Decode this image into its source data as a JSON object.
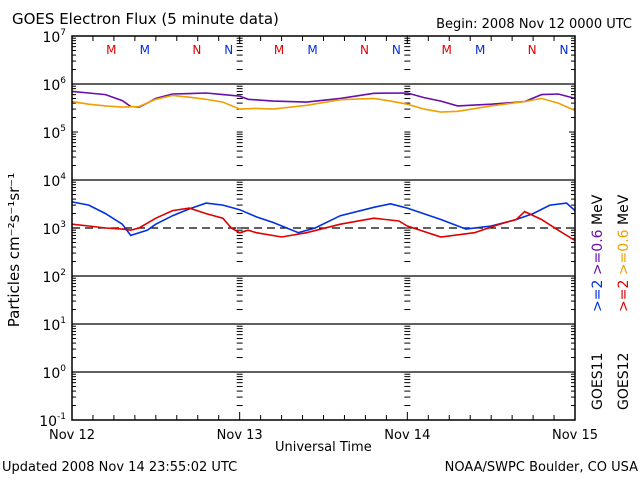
{
  "header": {
    "title": "GOES Electron Flux (5 minute data)",
    "begin": "Begin: 2008 Nov 12 0000 UTC"
  },
  "footer": {
    "updated": "Updated 2008 Nov 14 23:55:02 UTC",
    "credit": "NOAA/SWPC Boulder, CO USA"
  },
  "chart_data": {
    "type": "line",
    "title": "GOES Electron Flux (5 minute data)",
    "xlabel": "Universal Time",
    "ylabel": "Particles cm⁻²s⁻¹sr⁻¹",
    "yscale": "log",
    "ylim": [
      0.1,
      10000000
    ],
    "xlim_days": [
      0,
      3
    ],
    "x_ticks": [
      "Nov 12",
      "Nov 13",
      "Nov 14",
      "Nov 15"
    ],
    "y_ticks": [
      {
        "base": "10",
        "exp": "7"
      },
      {
        "base": "10",
        "exp": "6"
      },
      {
        "base": "10",
        "exp": "5"
      },
      {
        "base": "10",
        "exp": "4"
      },
      {
        "base": "10",
        "exp": "3"
      },
      {
        "base": "10",
        "exp": "2"
      },
      {
        "base": "10",
        "exp": "1"
      },
      {
        "base": "10",
        "exp": "0"
      },
      {
        "base": "10",
        "exp": "-1"
      }
    ],
    "horizontal_lines_decades": [
      6,
      4,
      2,
      1,
      0
    ],
    "threshold_dashed": 1000,
    "annotations": [
      {
        "label": "M",
        "day": 0.33,
        "color": "#e00000"
      },
      {
        "label": "M",
        "day": 0.53,
        "color": "#0030e0"
      },
      {
        "label": "N",
        "day": 0.84,
        "color": "#e00000"
      },
      {
        "label": "N",
        "day": 1.03,
        "color": "#0030e0"
      },
      {
        "label": "M",
        "day": 1.33,
        "color": "#e00000"
      },
      {
        "label": "M",
        "day": 1.53,
        "color": "#0030e0"
      },
      {
        "label": "N",
        "day": 1.84,
        "color": "#e00000"
      },
      {
        "label": "N",
        "day": 2.03,
        "color": "#0030e0"
      },
      {
        "label": "M",
        "day": 2.33,
        "color": "#e00000"
      },
      {
        "label": "M",
        "day": 2.53,
        "color": "#0030e0"
      },
      {
        "label": "N",
        "day": 2.84,
        "color": "#e00000"
      },
      {
        "label": "N",
        "day": 3.03,
        "color": "#0030e0"
      }
    ],
    "legend": {
      "placement": "right",
      "columns": [
        {
          "satellite": "GOES11",
          "entries": [
            {
              "label": ">=2",
              "color": "#0030e0"
            },
            {
              "label": ">=0.6",
              "color": "#6a0dad"
            },
            {
              "label": "MeV",
              "color": "#000000"
            }
          ]
        },
        {
          "satellite": "GOES12",
          "entries": [
            {
              "label": ">=2",
              "color": "#e00000"
            },
            {
              "label": ">=0.6",
              "color": "#f0a000"
            },
            {
              "label": "MeV",
              "color": "#000000"
            }
          ]
        }
      ]
    },
    "series": [
      {
        "name": "GOES11 >=0.6 MeV",
        "color": "#6a0dad",
        "x": [
          0,
          0.1,
          0.2,
          0.3,
          0.35,
          0.4,
          0.45,
          0.5,
          0.6,
          0.7,
          0.8,
          0.9,
          1.0,
          1.05,
          1.2,
          1.4,
          1.6,
          1.8,
          2.0,
          2.1,
          2.2,
          2.3,
          2.5,
          2.7,
          2.8,
          2.9,
          3.0
        ],
        "y": [
          700000,
          650000,
          600000,
          450000,
          340000,
          330000,
          400000,
          500000,
          620000,
          630000,
          650000,
          600000,
          560000,
          480000,
          440000,
          420000,
          500000,
          640000,
          650000,
          520000,
          440000,
          350000,
          380000,
          430000,
          600000,
          620000,
          500000
        ]
      },
      {
        "name": "GOES12 >=0.6 MeV",
        "color": "#f0a000",
        "x": [
          0,
          0.1,
          0.2,
          0.3,
          0.4,
          0.5,
          0.6,
          0.7,
          0.8,
          0.9,
          1.0,
          1.1,
          1.2,
          1.4,
          1.6,
          1.8,
          1.9,
          2.0,
          2.1,
          2.2,
          2.3,
          2.5,
          2.7,
          2.8,
          2.9,
          3.0
        ],
        "y": [
          430000,
          380000,
          350000,
          330000,
          340000,
          480000,
          580000,
          530000,
          480000,
          420000,
          300000,
          310000,
          300000,
          360000,
          470000,
          500000,
          440000,
          380000,
          300000,
          260000,
          270000,
          350000,
          430000,
          500000,
          400000,
          280000
        ]
      },
      {
        "name": "GOES11 >=2 MeV",
        "color": "#0030e0",
        "x": [
          0,
          0.1,
          0.2,
          0.3,
          0.35,
          0.4,
          0.45,
          0.5,
          0.6,
          0.7,
          0.8,
          0.9,
          1.0,
          1.1,
          1.2,
          1.35,
          1.45,
          1.6,
          1.8,
          1.9,
          2.0,
          2.2,
          2.35,
          2.5,
          2.65,
          2.75,
          2.85,
          2.95,
          3.0
        ],
        "y": [
          3500,
          3000,
          2000,
          1200,
          700,
          800,
          900,
          1200,
          1800,
          2500,
          3300,
          3000,
          2400,
          1700,
          1300,
          800,
          1000,
          1800,
          2700,
          3200,
          2600,
          1500,
          950,
          1100,
          1500,
          2000,
          3000,
          3300,
          2300
        ]
      },
      {
        "name": "GOES12 >=2 MeV",
        "color": "#e00000",
        "x": [
          0,
          0.1,
          0.2,
          0.3,
          0.35,
          0.4,
          0.5,
          0.6,
          0.7,
          0.8,
          0.9,
          0.95,
          1.0,
          1.05,
          1.1,
          1.25,
          1.4,
          1.6,
          1.8,
          1.95,
          2.0,
          2.2,
          2.4,
          2.55,
          2.65,
          2.7,
          2.8,
          2.9,
          3.0
        ],
        "y": [
          1200,
          1100,
          1000,
          950,
          900,
          1000,
          1600,
          2300,
          2600,
          2000,
          1600,
          1000,
          800,
          900,
          800,
          650,
          800,
          1200,
          1600,
          1400,
          1100,
          650,
          800,
          1200,
          1500,
          2200,
          1500,
          900,
          550
        ]
      }
    ]
  }
}
